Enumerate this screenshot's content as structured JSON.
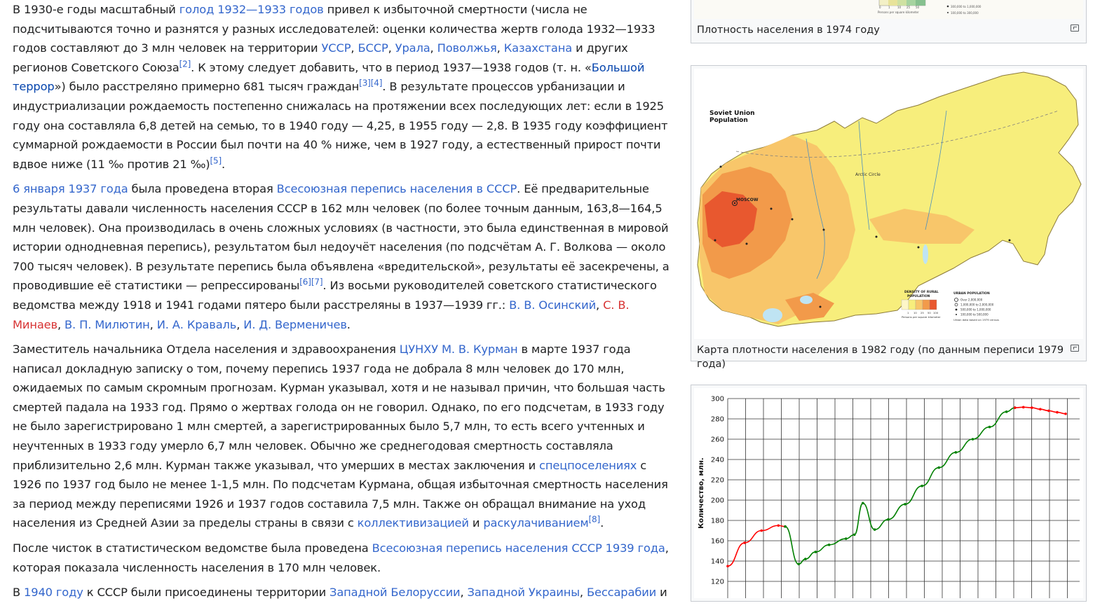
{
  "article": {
    "p1": {
      "t1": "В 1930-е годы масштабный ",
      "l1": "голод 1932—1933 годов",
      "t2": " привел к избыточной смертности (числа не подсчитываются точно и разнятся у разных исследователей: оценки количества жертв голода 1932—1933 годов составляют до 3 млн человек на территории ",
      "l2": "УССР",
      "t3": ", ",
      "l3": "БССР",
      "t4": ", ",
      "l4": "Урала",
      "t5": ", ",
      "l5": "Поволжья",
      "t6": ", ",
      "l6": "Казахстана",
      "t7": " и других регионов Советского Союза",
      "r1": "[2]",
      "t8": ". К этому следует добавить, что в период 1937—1938 годов (т. н. «",
      "l7": "Большой террор",
      "t9": "») было расстреляно примерно 681 тысяч граждан",
      "r2": "[3]",
      "r3": "[4]",
      "t10": ". В результате процессов урбанизации и индустриализации рождаемость постепенно снижалась на протяжении всех последующих лет: если в 1925 году она составляла 6,8 детей на семью, то в 1940 году — 4,25, в 1955 году — 2,8. В 1935 году коэффициент суммарной рождаемости в России был почти на 40 % ниже, чем в 1927 году, а естественный прирост почти вдвое ниже (11 ‰ против 21 ‰)",
      "r4": "[5]",
      "t11": "."
    },
    "p2": {
      "l1": "6 января",
      "t1": " ",
      "l2": "1937 года",
      "t2": " была проведена вторая ",
      "l3": "Всесоюзная перепись населения в СССР",
      "t3": ". Её предварительные результаты давали численность населения СССР в 162 млн человек (по более точным данным, 163,8—164,5 млн человек). Она производилась в очень сложных условиях (в частности, это была единственная в мировой истории однодневная перепись), результатом был недоучёт населения (по подсчётам А. Г. Волкова — около 700 тысяч человек). В результате перепись была объявлена «вредительской», результаты её засекречены, а проводившие её статистики — репрессированы",
      "r1": "[6]",
      "r2": "[7]",
      "t4": ". Из восьми руководителей советского статистического ведомства между 1918 и 1941 годами пятеро были расстреляны в 1937—1939 гг.: ",
      "l4": "В. В. Осинский",
      "t5": ", ",
      "l5": "С. В. Минаев",
      "t6": ", ",
      "l6": "В. П. Милютин",
      "t7": ", ",
      "l7": "И. А. Краваль",
      "t8": ", ",
      "l8": "И. Д. Верменичев",
      "t9": "."
    },
    "p3": {
      "t1": "Заместитель начальника Отдела населения и здравоохранения ",
      "l1": "ЦУНХУ",
      "t2": " ",
      "l2": "М. В. Курман",
      "t3": " в марте 1937 года написал докладную записку о том, почему перепись 1937 года не добрала 8 млн человек до 170 млн, ожидаемых по самым скромным прогнозам. Курман указывал, хотя и не называл причин, что большая часть смертей падала на 1933 год. Прямо о жертвах голода он не говорил. Однако, по его подсчетам, в 1933 году не было зарегистрировано 1 млн смертей, а зарегистрированных было 5,7 млн, то есть всего учтенных и неучтенных в 1933 году умерло 6,7 млн человек. Обычно же среднегодовая смертность составляла приблизительно 2,6 млн. Курман также указывал, что умерших в местах заключения и ",
      "l3": "спецпоселениях",
      "t4": " с 1926 по 1937 год было не менее 1-1,5 млн. По подсчетам Курмана, общая избыточная смертность населения за период между переписями 1926 и 1937 годов составила 7,5 млн. Также он обращал внимание на уход населения из Средней Азии за пределы страны в связи с ",
      "l4": "коллективизацией",
      "t5": " и ",
      "l5": "раскулачиванием",
      "r1": "[8]",
      "t6": "."
    },
    "p4": {
      "t1": "После чисток в статистическом ведомстве была проведена ",
      "l1": "Всесоюзная перепись населения СССР 1939 года",
      "t2": ", которая показала численность населения в 170 млн человек."
    },
    "p5": {
      "t1": "В ",
      "l1": "1940 году",
      "t2": " к СССР были присоединены территории ",
      "l2": "Западной Белоруссии",
      "t3": ", ",
      "l3": "Западной Украины",
      "t4": ", ",
      "l4": "Бессарабии",
      "t5": " и"
    }
  },
  "thumbs": {
    "t1": {
      "caption": "Плотность населения в 1974 году",
      "legend_units": "Persons per square kilometer",
      "legend_ticks": [
        "0",
        "1",
        "10",
        "25",
        "50"
      ],
      "legend_urban": [
        "300,000 to 1,000,000",
        "100,000 to 300,000"
      ]
    },
    "t2": {
      "caption": "Карта плотности населения в 1982 году (по данным переписи 1979 года)",
      "map_title_1": "Soviet Union",
      "map_title_2": "Population",
      "city_moscow": "MOSCOW",
      "city_arctic": "Arctic Circle",
      "rural_title_1": "DENSITY OF RURAL",
      "rural_title_2": "POPULATION",
      "rural_units": "Persons per square kilometer",
      "rural_ticks": [
        "1",
        "10",
        "25",
        "50",
        "100"
      ],
      "urban_title": "URBAN POPULATION",
      "urban_items": [
        "Over 2,000,000",
        "1,000,000 to 2,000,000",
        "500,000 to 1,000,000",
        "100,000 to 500,000"
      ],
      "urban_note": "Urban data based on 1979 census"
    },
    "t3": {
      "ylabel": "Количество, млн."
    }
  },
  "colors": {
    "link": "#3366cc",
    "visited_link": "#0645ad",
    "redlink": "#d73333",
    "series_decline": "#ff0000",
    "series_growth": "#008000"
  },
  "chart_data": {
    "type": "line",
    "title": "",
    "xlabel": "",
    "ylabel": "Количество, млн.",
    "ylim": [
      120,
      300
    ],
    "yticks": [
      120,
      140,
      160,
      180,
      200,
      220,
      240,
      260,
      280,
      300
    ],
    "grid": true,
    "legend": "none",
    "series": [
      {
        "color": "#ff0000",
        "values": [
          [
            0,
            135
          ],
          [
            1,
            158
          ],
          [
            2,
            170
          ],
          [
            3,
            175
          ],
          [
            3.4,
            174
          ]
        ]
      },
      {
        "color": "#008000",
        "values": [
          [
            3.4,
            174
          ],
          [
            4.2,
            137
          ],
          [
            4.6,
            142
          ],
          [
            5.2,
            149
          ],
          [
            6.0,
            156
          ],
          [
            7.0,
            162
          ],
          [
            7.5,
            166
          ],
          [
            8.0,
            197
          ],
          [
            8.7,
            171
          ],
          [
            9.5,
            181
          ],
          [
            10.5,
            196
          ],
          [
            11.5,
            214
          ],
          [
            12.5,
            232
          ],
          [
            13.5,
            247
          ],
          [
            14.5,
            260
          ],
          [
            15.5,
            272
          ],
          [
            16.5,
            287
          ],
          [
            17.0,
            291
          ]
        ]
      },
      {
        "color": "#ff0000",
        "values": [
          [
            17.0,
            291
          ],
          [
            17.5,
            291.5
          ],
          [
            18.0,
            291
          ],
          [
            18.5,
            289.5
          ],
          [
            19.0,
            288
          ],
          [
            19.5,
            286.5
          ],
          [
            20.0,
            285
          ]
        ]
      }
    ]
  }
}
